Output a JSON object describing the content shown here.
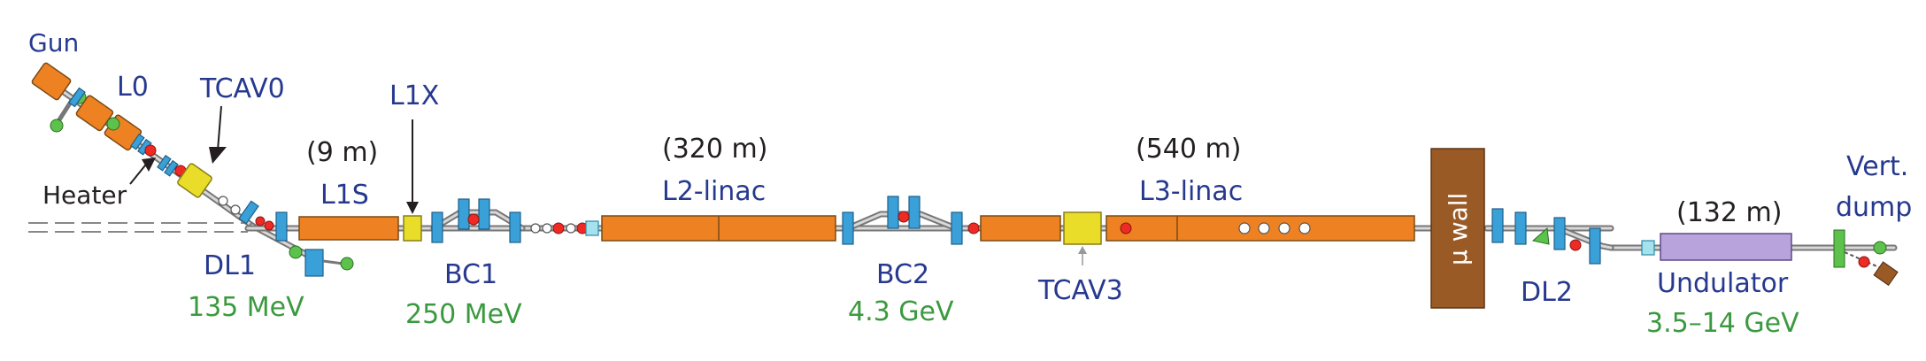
{
  "labels": {
    "gun": "Gun",
    "l0": "L0",
    "tcav0": "TCAV0",
    "heater": "Heater",
    "dl1": "DL1",
    "dl1_energy": "135 MeV",
    "l1s_length": "(9 m)",
    "l1s": "L1S",
    "l1x": "L1X",
    "bc1": "BC1",
    "bc1_energy": "250 MeV",
    "l2_length": "(320 m)",
    "l2": "L2-linac",
    "bc2": "BC2",
    "bc2_energy": "4.3 GeV",
    "tcav3": "TCAV3",
    "l3_length": "(540 m)",
    "l3": "L3-linac",
    "mu_wall": "μ wall",
    "dl2": "DL2",
    "und_length": "(132 m)",
    "undulator": "Undulator",
    "und_energy": "3.5–14 GeV",
    "vert": "Vert.",
    "dump": "dump"
  },
  "colors": {
    "label_blue": "#27398f",
    "energy_green": "#3b9a3f",
    "accelerator_orange": "#ee8222",
    "cavity_yellow": "#e9dd2a",
    "magnet_blue": "#3aa0d8",
    "wall_brown": "#9a5a26",
    "undulator_purple": "#b9a3dd"
  }
}
